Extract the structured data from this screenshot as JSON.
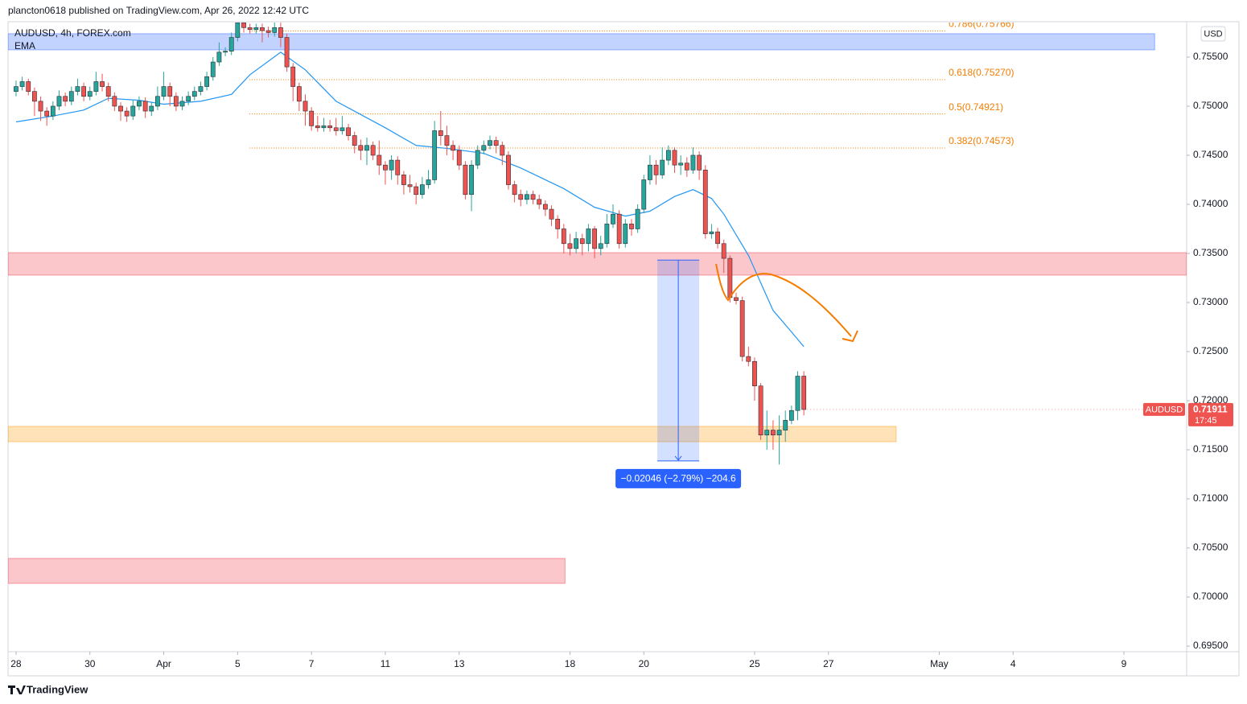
{
  "header": "plancton0618 published on TradingView.com, Apr 26, 2022 12:42 UTC",
  "footer": "TradingView",
  "chart_data": {
    "type": "candlestick",
    "title": "AUDUSD, 4h, FOREX.com",
    "indicator": "EMA",
    "currency": "USD",
    "symbol": "AUDUSD",
    "last_price": 0.71911,
    "countdown": "17:45",
    "up_color": "#26a69a",
    "down_color": "#ef5350",
    "xlim": [
      -1.3,
      190.2
    ],
    "ylim": [
      0.69443,
      0.75852
    ],
    "xticks": [
      {
        "value": 0,
        "label": "28"
      },
      {
        "value": 12,
        "label": "30"
      },
      {
        "value": 24,
        "label": "Apr"
      },
      {
        "value": 36,
        "label": "5"
      },
      {
        "value": 48,
        "label": "7"
      },
      {
        "value": 60,
        "label": "11"
      },
      {
        "value": 72,
        "label": "13"
      },
      {
        "value": 90,
        "label": "18"
      },
      {
        "value": 102,
        "label": "20"
      },
      {
        "value": 120,
        "label": "25"
      },
      {
        "value": 132,
        "label": "27"
      },
      {
        "value": 150,
        "label": "May"
      },
      {
        "value": 162,
        "label": "4"
      },
      {
        "value": 180,
        "label": "9"
      }
    ],
    "yticks": [
      {
        "value": 0.695,
        "label": "0.69500"
      },
      {
        "value": 0.7,
        "label": "0.70000"
      },
      {
        "value": 0.705,
        "label": "0.70500"
      },
      {
        "value": 0.71,
        "label": "0.71000"
      },
      {
        "value": 0.715,
        "label": "0.71500"
      },
      {
        "value": 0.72,
        "label": "0.72000"
      },
      {
        "value": 0.725,
        "label": "0.72500"
      },
      {
        "value": 0.73,
        "label": "0.73000"
      },
      {
        "value": 0.735,
        "label": "0.73500"
      },
      {
        "value": 0.74,
        "label": "0.74000"
      },
      {
        "value": 0.745,
        "label": "0.74500"
      },
      {
        "value": 0.75,
        "label": "0.75000"
      },
      {
        "value": 0.755,
        "label": "0.75500"
      }
    ],
    "candles": [
      [
        0.7515,
        0.7526,
        0.751,
        0.752
      ],
      [
        0.752,
        0.753,
        0.7516,
        0.7525
      ],
      [
        0.7525,
        0.7528,
        0.7511,
        0.7515
      ],
      [
        0.7515,
        0.7519,
        0.749,
        0.7505
      ],
      [
        0.7505,
        0.751,
        0.7485,
        0.7495
      ],
      [
        0.7495,
        0.7499,
        0.748,
        0.749
      ],
      [
        0.749,
        0.7505,
        0.7486,
        0.75
      ],
      [
        0.75,
        0.7516,
        0.7496,
        0.751
      ],
      [
        0.751,
        0.7514,
        0.75,
        0.7505
      ],
      [
        0.7505,
        0.752,
        0.7501,
        0.7515
      ],
      [
        0.7515,
        0.7528,
        0.7511,
        0.752
      ],
      [
        0.752,
        0.7524,
        0.7505,
        0.751
      ],
      [
        0.751,
        0.752,
        0.7506,
        0.7515
      ],
      [
        0.7515,
        0.7535,
        0.7511,
        0.7525
      ],
      [
        0.7525,
        0.7533,
        0.7515,
        0.752
      ],
      [
        0.752,
        0.7524,
        0.7505,
        0.751
      ],
      [
        0.751,
        0.7514,
        0.7495,
        0.75
      ],
      [
        0.75,
        0.7504,
        0.7485,
        0.7495
      ],
      [
        0.7495,
        0.7499,
        0.7484,
        0.749
      ],
      [
        0.749,
        0.7506,
        0.7486,
        0.75
      ],
      [
        0.75,
        0.751,
        0.7496,
        0.7505
      ],
      [
        0.7505,
        0.7509,
        0.7488,
        0.7495
      ],
      [
        0.7495,
        0.7504,
        0.749,
        0.75
      ],
      [
        0.75,
        0.752,
        0.7496,
        0.751
      ],
      [
        0.751,
        0.7535,
        0.7506,
        0.752
      ],
      [
        0.752,
        0.7524,
        0.75,
        0.751
      ],
      [
        0.751,
        0.7514,
        0.7495,
        0.75
      ],
      [
        0.75,
        0.751,
        0.7496,
        0.7505
      ],
      [
        0.7505,
        0.7515,
        0.7501,
        0.751
      ],
      [
        0.751,
        0.752,
        0.7506,
        0.7515
      ],
      [
        0.7515,
        0.7525,
        0.7511,
        0.752
      ],
      [
        0.752,
        0.7535,
        0.7516,
        0.753
      ],
      [
        0.753,
        0.755,
        0.7526,
        0.7545
      ],
      [
        0.7545,
        0.7565,
        0.7541,
        0.7555
      ],
      [
        0.7555,
        0.756,
        0.7551,
        0.7556
      ],
      [
        0.7556,
        0.7575,
        0.7552,
        0.757
      ],
      [
        0.757,
        0.76,
        0.7566,
        0.7585
      ],
      [
        0.7585,
        0.7592,
        0.7575,
        0.758
      ],
      [
        0.758,
        0.7584,
        0.7574,
        0.7578
      ],
      [
        0.7578,
        0.7584,
        0.7574,
        0.758
      ],
      [
        0.758,
        0.7584,
        0.7565,
        0.7577
      ],
      [
        0.7577,
        0.7581,
        0.757,
        0.7575
      ],
      [
        0.7575,
        0.7586,
        0.7571,
        0.758
      ],
      [
        0.758,
        0.7585,
        0.756,
        0.757
      ],
      [
        0.757,
        0.7574,
        0.7535,
        0.754
      ],
      [
        0.754,
        0.7544,
        0.7505,
        0.752
      ],
      [
        0.752,
        0.7524,
        0.7495,
        0.7505
      ],
      [
        0.7505,
        0.7512,
        0.748,
        0.7495
      ],
      [
        0.7495,
        0.7499,
        0.7475,
        0.748
      ],
      [
        0.748,
        0.749,
        0.7474,
        0.7478
      ],
      [
        0.7478,
        0.7488,
        0.7474,
        0.748
      ],
      [
        0.748,
        0.7486,
        0.7474,
        0.7478
      ],
      [
        0.7478,
        0.7488,
        0.747,
        0.7475
      ],
      [
        0.7475,
        0.749,
        0.7471,
        0.7478
      ],
      [
        0.7478,
        0.7482,
        0.7465,
        0.747
      ],
      [
        0.747,
        0.7474,
        0.7452,
        0.746
      ],
      [
        0.746,
        0.7466,
        0.7445,
        0.7455
      ],
      [
        0.7455,
        0.7468,
        0.744,
        0.746
      ],
      [
        0.746,
        0.7464,
        0.7445,
        0.745
      ],
      [
        0.745,
        0.7465,
        0.743,
        0.744
      ],
      [
        0.744,
        0.7444,
        0.742,
        0.7435
      ],
      [
        0.7435,
        0.745,
        0.7425,
        0.7445
      ],
      [
        0.7445,
        0.7449,
        0.742,
        0.743
      ],
      [
        0.743,
        0.7434,
        0.741,
        0.742
      ],
      [
        0.742,
        0.743,
        0.7412,
        0.7418
      ],
      [
        0.7418,
        0.7422,
        0.74,
        0.741
      ],
      [
        0.741,
        0.7428,
        0.7406,
        0.742
      ],
      [
        0.742,
        0.7435,
        0.7416,
        0.7425
      ],
      [
        0.7425,
        0.7485,
        0.7421,
        0.7475
      ],
      [
        0.7475,
        0.7495,
        0.746,
        0.747
      ],
      [
        0.747,
        0.748,
        0.745,
        0.746
      ],
      [
        0.746,
        0.7465,
        0.7445,
        0.7455
      ],
      [
        0.7455,
        0.746,
        0.7435,
        0.744
      ],
      [
        0.744,
        0.7444,
        0.7405,
        0.741
      ],
      [
        0.741,
        0.7445,
        0.7393,
        0.744
      ],
      [
        0.744,
        0.746,
        0.7436,
        0.7455
      ],
      [
        0.7455,
        0.7465,
        0.7451,
        0.746
      ],
      [
        0.746,
        0.747,
        0.7456,
        0.7465
      ],
      [
        0.7465,
        0.7469,
        0.7452,
        0.746
      ],
      [
        0.746,
        0.7464,
        0.744,
        0.745
      ],
      [
        0.745,
        0.7454,
        0.7415,
        0.742
      ],
      [
        0.742,
        0.7424,
        0.7402,
        0.741
      ],
      [
        0.741,
        0.7415,
        0.7398,
        0.7405
      ],
      [
        0.7405,
        0.7414,
        0.74,
        0.741
      ],
      [
        0.741,
        0.7414,
        0.74,
        0.7405
      ],
      [
        0.7405,
        0.741,
        0.7395,
        0.74
      ],
      [
        0.74,
        0.7404,
        0.7388,
        0.7395
      ],
      [
        0.7395,
        0.7399,
        0.7378,
        0.7385
      ],
      [
        0.7385,
        0.7389,
        0.7365,
        0.7375
      ],
      [
        0.7375,
        0.738,
        0.735,
        0.736
      ],
      [
        0.736,
        0.737,
        0.7348,
        0.7355
      ],
      [
        0.7355,
        0.7372,
        0.735,
        0.7365
      ],
      [
        0.7365,
        0.737,
        0.7348,
        0.736
      ],
      [
        0.736,
        0.738,
        0.7352,
        0.7375
      ],
      [
        0.7375,
        0.7378,
        0.7345,
        0.7355
      ],
      [
        0.7355,
        0.7368,
        0.7348,
        0.736
      ],
      [
        0.736,
        0.739,
        0.7356,
        0.738
      ],
      [
        0.738,
        0.74,
        0.7376,
        0.739
      ],
      [
        0.739,
        0.7394,
        0.7355,
        0.736
      ],
      [
        0.736,
        0.7385,
        0.7356,
        0.738
      ],
      [
        0.738,
        0.7385,
        0.7368,
        0.7375
      ],
      [
        0.7375,
        0.74,
        0.7371,
        0.7395
      ],
      [
        0.7395,
        0.743,
        0.7391,
        0.7425
      ],
      [
        0.7425,
        0.745,
        0.742,
        0.744
      ],
      [
        0.744,
        0.7445,
        0.742,
        0.743
      ],
      [
        0.743,
        0.7458,
        0.7426,
        0.7445
      ],
      [
        0.7445,
        0.746,
        0.744,
        0.7455
      ],
      [
        0.7455,
        0.7458,
        0.7432,
        0.744
      ],
      [
        0.744,
        0.745,
        0.743,
        0.7442
      ],
      [
        0.7442,
        0.7448,
        0.7428,
        0.7435
      ],
      [
        0.7435,
        0.7458,
        0.7431,
        0.745
      ],
      [
        0.745,
        0.7454,
        0.7425,
        0.7435
      ],
      [
        0.7435,
        0.744,
        0.7365,
        0.737
      ],
      [
        0.737,
        0.738,
        0.7365,
        0.7372
      ],
      [
        0.7372,
        0.7376,
        0.7355,
        0.736
      ],
      [
        0.736,
        0.7364,
        0.733,
        0.7345
      ],
      [
        0.7345,
        0.7348,
        0.73,
        0.7305
      ],
      [
        0.7305,
        0.731,
        0.7298,
        0.7302
      ],
      [
        0.7302,
        0.7306,
        0.724,
        0.7245
      ],
      [
        0.7245,
        0.7255,
        0.7235,
        0.724
      ],
      [
        0.724,
        0.7244,
        0.72,
        0.7215
      ],
      [
        0.7215,
        0.7218,
        0.716,
        0.7165
      ],
      [
        0.7165,
        0.719,
        0.715,
        0.717
      ],
      [
        0.717,
        0.718,
        0.715,
        0.7165
      ],
      [
        0.7165,
        0.7185,
        0.7135,
        0.717
      ],
      [
        0.717,
        0.719,
        0.7158,
        0.718
      ],
      [
        0.718,
        0.7195,
        0.7176,
        0.719
      ],
      [
        0.719,
        0.723,
        0.718,
        0.7225
      ],
      [
        0.7225,
        0.723,
        0.7185,
        0.7191
      ]
    ],
    "ema": {
      "color": "#2196f3",
      "x": [
        0,
        6,
        11,
        15,
        20,
        24,
        30,
        35,
        38,
        43,
        47,
        52,
        60,
        65,
        70,
        76,
        82,
        89,
        94,
        99,
        103,
        107,
        110,
        113,
        115,
        119,
        123,
        126,
        128
      ],
      "values": [
        0.7484,
        0.749,
        0.7496,
        0.7508,
        0.7506,
        0.7502,
        0.7505,
        0.7512,
        0.7532,
        0.7555,
        0.7537,
        0.7505,
        0.7478,
        0.746,
        0.7457,
        0.7452,
        0.7437,
        0.7416,
        0.7397,
        0.7388,
        0.7393,
        0.7408,
        0.7415,
        0.7406,
        0.739,
        0.7348,
        0.7292,
        0.727,
        0.7255
      ]
    },
    "zones": [
      {
        "color": "#2962ff",
        "xlim": [
          -1.3,
          185
        ],
        "ylim": [
          0.75574,
          0.75738
        ]
      },
      {
        "color": "#f23645",
        "xlim": [
          -1.3,
          190.2
        ],
        "ylim": [
          0.73279,
          0.73508
        ]
      },
      {
        "color": "#ff9800",
        "xlim": [
          -1.3,
          143
        ],
        "ylim": [
          0.71582,
          0.71738
        ]
      },
      {
        "color": "#f23645",
        "xlim": [
          -1.3,
          89.2
        ],
        "ylim": [
          0.70139,
          0.70393
        ]
      }
    ],
    "fib": {
      "color": "#f57c00",
      "xlim": [
        37.9,
        151
      ],
      "levels": [
        {
          "value": 0.75766,
          "label": "0.786(0.75766)"
        },
        {
          "value": 0.7527,
          "label": "0.618(0.75270)"
        },
        {
          "value": 0.74921,
          "label": "0.5(0.74921)"
        },
        {
          "value": 0.74573,
          "label": "0.382(0.74573)"
        }
      ]
    },
    "measure": {
      "color": "#2962ff",
      "xlim": [
        104.2,
        111
      ],
      "from": 0.73432,
      "to": 0.71386,
      "label": "−0.02046 (−2.79%) −204.6"
    }
  }
}
